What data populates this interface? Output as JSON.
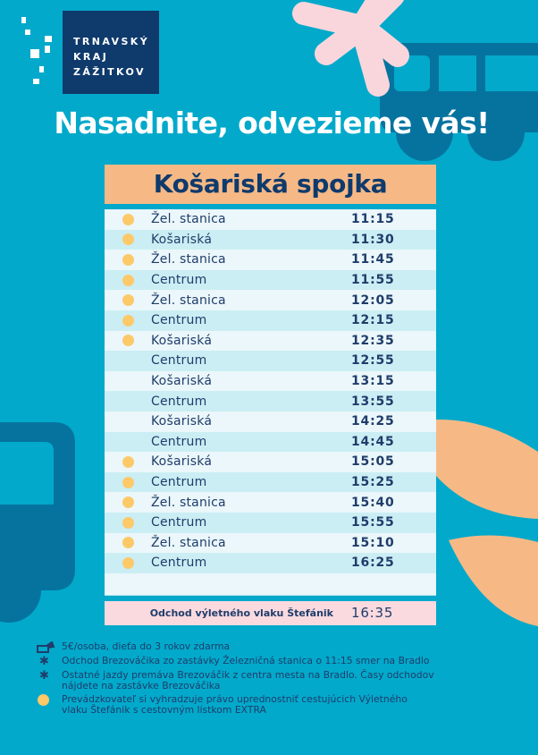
{
  "brand": {
    "logo_lines": [
      "TRNAVSKÝ",
      "KRAJ",
      "ZÁŽITKOV"
    ],
    "colors": {
      "background": "#02a9cb",
      "navy": "#0f3a6c",
      "peach": "#f6b986",
      "pink": "#fadadf",
      "bus": "#06739f",
      "dot": "#fdc969"
    }
  },
  "headline": "Nasadnite, odvezieme vás!",
  "timetable": {
    "title": "Košariská spojka",
    "rows": [
      {
        "dot": true,
        "stop": "Žel. stanica",
        "time": "11:15"
      },
      {
        "dot": true,
        "stop": "Košariská",
        "time": "11:30"
      },
      {
        "dot": true,
        "stop": "Žel. stanica",
        "time": "11:45"
      },
      {
        "dot": true,
        "stop": "Centrum",
        "time": "11:55"
      },
      {
        "dot": true,
        "stop": "Žel. stanica",
        "time": "12:05"
      },
      {
        "dot": true,
        "stop": "Centrum",
        "time": "12:15"
      },
      {
        "dot": true,
        "stop": "Košariská",
        "time": "12:35"
      },
      {
        "dot": false,
        "stop": "Centrum",
        "time": "12:55"
      },
      {
        "dot": false,
        "stop": "Košariská",
        "time": "13:15"
      },
      {
        "dot": false,
        "stop": "Centrum",
        "time": "13:55"
      },
      {
        "dot": false,
        "stop": "Košariská",
        "time": "14:25"
      },
      {
        "dot": false,
        "stop": "Centrum",
        "time": "14:45"
      },
      {
        "dot": true,
        "stop": "Košariská",
        "time": "15:05"
      },
      {
        "dot": true,
        "stop": "Centrum",
        "time": "15:25"
      },
      {
        "dot": true,
        "stop": "Žel. stanica",
        "time": "15:40"
      },
      {
        "dot": true,
        "stop": "Centrum",
        "time": "15:55"
      },
      {
        "dot": true,
        "stop": "Žel. stanica",
        "time": "15:10"
      },
      {
        "dot": true,
        "stop": "Centrum",
        "time": "16:25"
      }
    ],
    "footer": {
      "label": "Odchod výletného vlaku Štefánik",
      "time": "16:35"
    }
  },
  "notes": [
    {
      "icon": "ticket-icon",
      "lines": [
        "5€/osoba, dieťa do 3 rokov zdarma"
      ]
    },
    {
      "icon": "asterisk-icon",
      "lines": [
        "Odchod Brezováčika zo zastávky Železničná stanica o 11:15 smer na Bradlo"
      ]
    },
    {
      "icon": "asterisk-icon",
      "lines": [
        "Ostatné jazdy premáva Brezováčik z centra mesta na Bradlo. Časy odchodov",
        "nájdete na zastávke Brezováčika"
      ]
    },
    {
      "icon": "dot-icon",
      "lines": [
        "Prevádzkovateľ si vyhradzuje právo uprednostniť cestujúcich Výletného",
        "vlaku Štefánik s cestovným lístkom EXTRA"
      ]
    }
  ]
}
